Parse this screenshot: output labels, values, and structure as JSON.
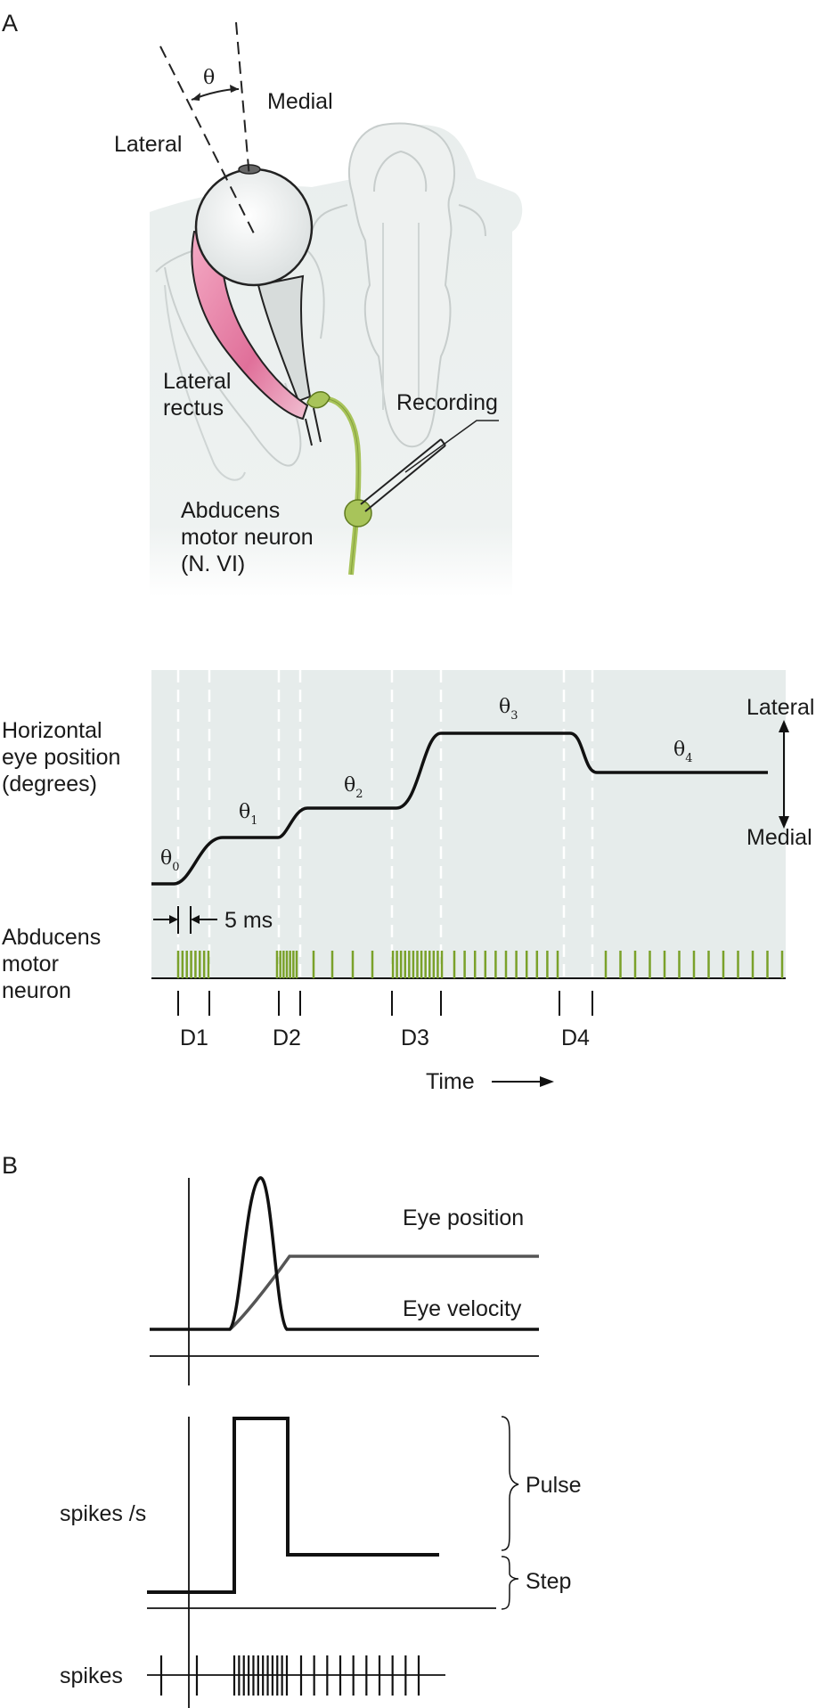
{
  "panel_a": {
    "label": "A",
    "anatomy": {
      "angle_symbol": "θ",
      "medial": "Medial",
      "lateral": "Lateral",
      "lateral_rectus": [
        "Lateral",
        "rectus"
      ],
      "recording": "Recording",
      "abducens": [
        "Abducens",
        "motor neuron",
        "(N. VI)"
      ]
    },
    "plot": {
      "y_label": [
        "Horizontal",
        "eye position",
        "(degrees)"
      ],
      "row_label": [
        "Abducens",
        "motor",
        "neuron"
      ],
      "direction_top": "Lateral",
      "direction_bottom": "Medial",
      "interval_label": "5 ms",
      "theta_symbol": "θ",
      "theta_subs": [
        "0",
        "1",
        "2",
        "3",
        "4"
      ],
      "durations": [
        "D1",
        "D2",
        "D3",
        "D4"
      ],
      "time_label": "Time",
      "colors": {
        "spike": "#7aa12a",
        "background": "#e6eceb",
        "pink": "#e0709a",
        "nerve": "#a8c45a"
      }
    }
  },
  "panel_b": {
    "label": "B",
    "eye_position": "Eye position",
    "eye_velocity": "Eye velocity",
    "rate_label": "spikes /s",
    "pulse": "Pulse",
    "step": "Step",
    "spikes_label": "spikes"
  }
}
